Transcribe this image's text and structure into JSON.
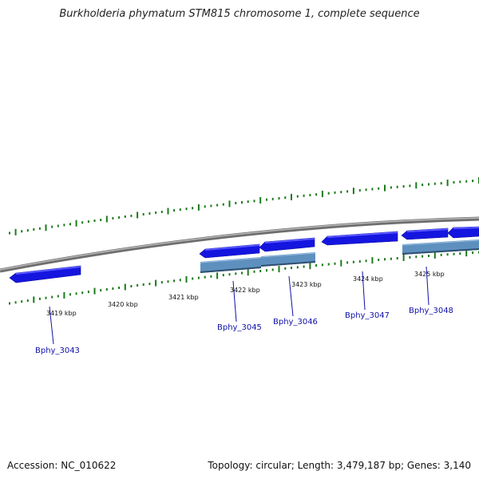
{
  "title": "Burkholderia phymatum STM815 chromosome 1, complete sequence",
  "accession": "Accession: NC_010622",
  "topology": "Topology: circular; Length: 3,479,187 bp; Genes: 3,140",
  "colors": {
    "backbone": "#8a8a8a",
    "gene_fill": "#1515e0",
    "gene_highlight": "#4a4aff",
    "gene_dark": "#0808a0",
    "cds_fill": "#5e90bf",
    "cds_edge": "#2e4f70",
    "tick": "#1a7a1a",
    "label": "#1010a8"
  },
  "kbp_labels": [
    "3419 kbp",
    "3420 kbp",
    "3421 kbp",
    "3422 kbp",
    "3423 kbp",
    "3424 kbp",
    "3425 kbp"
  ],
  "gene_labels": [
    "Bphy_3043",
    "Bphy_3045",
    "Bphy_3046",
    "Bphy_3047",
    "Bphy_3048"
  ]
}
